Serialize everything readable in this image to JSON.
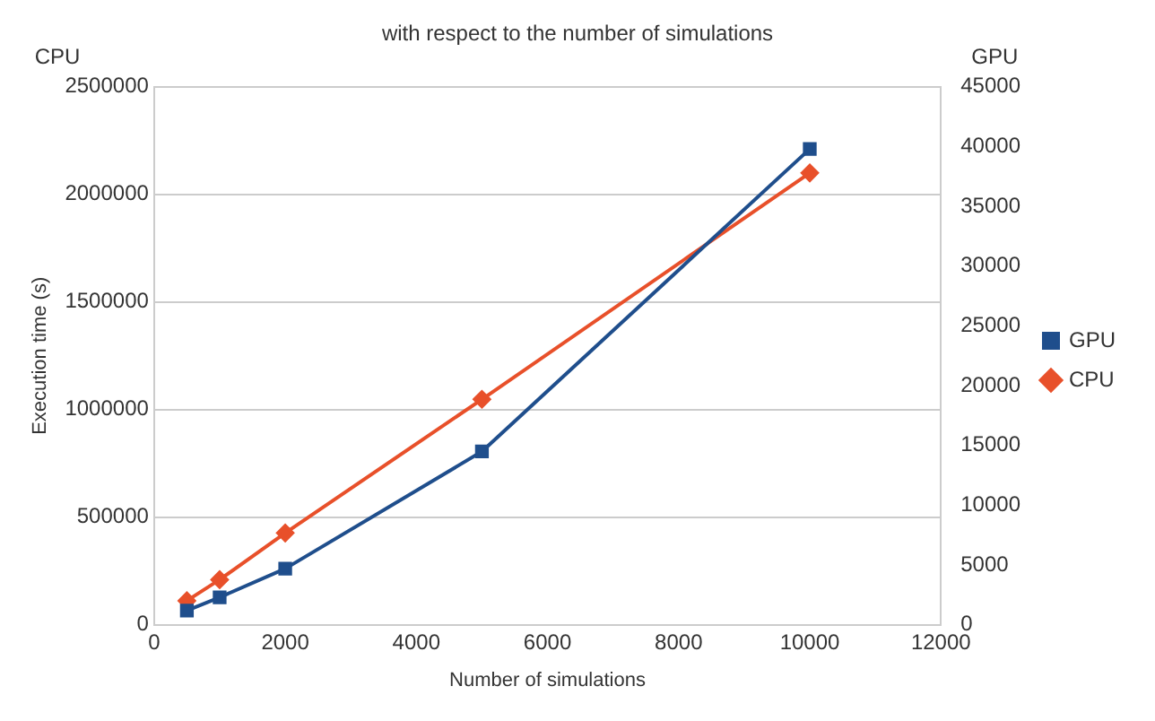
{
  "chart_data": {
    "type": "line",
    "title": "with respect to the number of simulations",
    "xlabel": "Number of simulations",
    "ylabel": "Execution time (s)",
    "y2label": "GPU",
    "annotations": [
      "CPU"
    ],
    "x": [
      500,
      1000,
      2000,
      5000,
      10000
    ],
    "series": [
      {
        "name": "GPU",
        "color": "#1f4e8c",
        "axis": "y2",
        "marker": "square",
        "values": [
          1200,
          2300,
          4700,
          14500,
          39800
        ]
      },
      {
        "name": "CPU",
        "color": "#e8502a",
        "marker": "diamond",
        "values": [
          112000,
          210000,
          427000,
          1048000,
          2100000
        ]
      }
    ],
    "xlim": [
      0,
      12000
    ],
    "xticks": [
      0,
      2000,
      4000,
      6000,
      8000,
      10000,
      12000
    ],
    "ylim": [
      0,
      2500000
    ],
    "yticks": [
      0,
      500000,
      1000000,
      1500000,
      2000000,
      2500000
    ],
    "y2lim": [
      0,
      45000
    ],
    "y2ticks": [
      0,
      5000,
      10000,
      15000,
      20000,
      25000,
      30000,
      35000,
      40000,
      45000
    ],
    "grid": "y",
    "legend": "right",
    "line_style": "solid"
  }
}
